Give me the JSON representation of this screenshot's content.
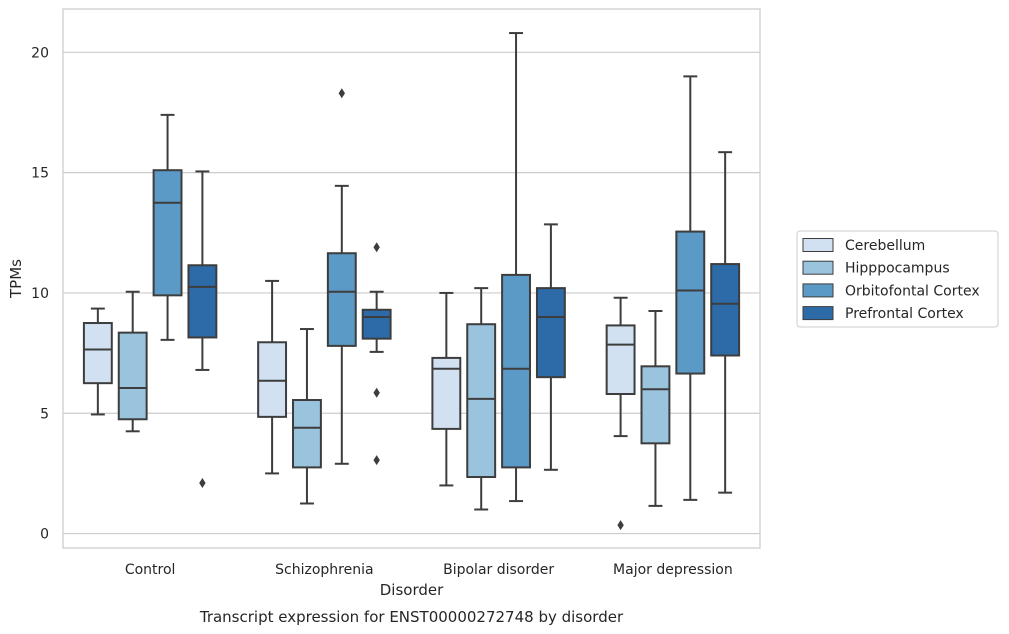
{
  "chart_data": {
    "type": "box",
    "title": "",
    "caption": "Transcript expression for ENST00000272748 by disorder",
    "xlabel": "Disorder",
    "ylabel": "TPMs",
    "ylim": [
      -0.6,
      21.8
    ],
    "yticks": [
      0,
      5,
      10,
      15,
      20
    ],
    "grid": "horizontal",
    "legend_position": "right",
    "categories": [
      "Control",
      "Schizophrenia",
      "Bipolar disorder",
      "Major depression"
    ],
    "series": [
      {
        "name": "Cerebellum",
        "color": "#d1e1f1",
        "boxes": [
          {
            "whislo": 4.95,
            "q1": 6.25,
            "med": 7.65,
            "q3": 8.75,
            "whishi": 9.35,
            "fliers": []
          },
          {
            "whislo": 2.5,
            "q1": 4.85,
            "med": 6.35,
            "q3": 7.95,
            "whishi": 10.5,
            "fliers": []
          },
          {
            "whislo": 2.0,
            "q1": 4.35,
            "med": 6.85,
            "q3": 7.3,
            "whishi": 10.0,
            "fliers": []
          },
          {
            "whislo": 4.05,
            "q1": 5.8,
            "med": 7.85,
            "q3": 8.65,
            "whishi": 9.8,
            "fliers": [
              0.35
            ]
          }
        ]
      },
      {
        "name": "Hipppocampus",
        "color": "#9ac3de",
        "boxes": [
          {
            "whislo": 4.25,
            "q1": 4.75,
            "med": 6.05,
            "q3": 8.35,
            "whishi": 10.05,
            "fliers": []
          },
          {
            "whislo": 1.25,
            "q1": 2.75,
            "med": 4.4,
            "q3": 5.55,
            "whishi": 8.5,
            "fliers": []
          },
          {
            "whislo": 1.0,
            "q1": 2.35,
            "med": 5.6,
            "q3": 8.7,
            "whishi": 10.2,
            "fliers": []
          },
          {
            "whislo": 1.15,
            "q1": 3.75,
            "med": 6.0,
            "q3": 6.95,
            "whishi": 9.25,
            "fliers": []
          }
        ]
      },
      {
        "name": "Orbitofontal Cortex",
        "color": "#5b9ac6",
        "boxes": [
          {
            "whislo": 8.05,
            "q1": 9.9,
            "med": 13.75,
            "q3": 15.1,
            "whishi": 17.4,
            "fliers": []
          },
          {
            "whislo": 2.9,
            "q1": 7.8,
            "med": 10.05,
            "q3": 11.65,
            "whishi": 14.45,
            "fliers": [
              18.3
            ]
          },
          {
            "whislo": 1.35,
            "q1": 2.75,
            "med": 6.85,
            "q3": 10.75,
            "whishi": 20.8,
            "fliers": []
          },
          {
            "whislo": 1.4,
            "q1": 6.65,
            "med": 10.1,
            "q3": 12.55,
            "whishi": 19.0,
            "fliers": []
          }
        ]
      },
      {
        "name": "Prefrontal Cortex",
        "color": "#2c6aa8",
        "boxes": [
          {
            "whislo": 6.8,
            "q1": 8.15,
            "med": 10.25,
            "q3": 11.15,
            "whishi": 15.05,
            "fliers": [
              2.1
            ]
          },
          {
            "whislo": 7.55,
            "q1": 8.1,
            "med": 9.0,
            "q3": 9.3,
            "whishi": 10.05,
            "fliers": [
              11.9,
              5.85,
              3.05
            ]
          },
          {
            "whislo": 2.65,
            "q1": 6.5,
            "med": 9.0,
            "q3": 10.2,
            "whishi": 12.85,
            "fliers": []
          },
          {
            "whislo": 1.7,
            "q1": 7.4,
            "med": 9.55,
            "q3": 11.2,
            "whishi": 15.85,
            "fliers": []
          }
        ]
      }
    ]
  }
}
